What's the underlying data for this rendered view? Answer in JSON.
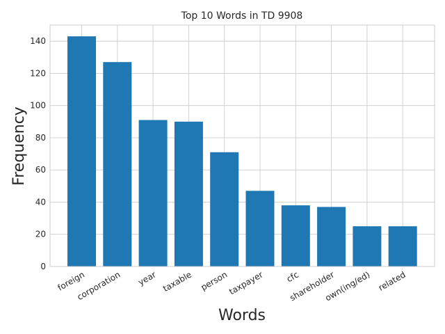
{
  "chart_data": {
    "type": "bar",
    "title": "Top 10 Words in TD 9908",
    "xlabel": "Words",
    "ylabel": "Frequency",
    "categories": [
      "foreign",
      "corporation",
      "year",
      "taxable",
      "person",
      "taxpayer",
      "cfc",
      "shareholder",
      "own(ing/ed)",
      "related"
    ],
    "values": [
      143,
      127,
      91,
      90,
      71,
      47,
      38,
      37,
      25,
      25
    ],
    "ylim": [
      0,
      150
    ],
    "yticks": [
      0,
      20,
      40,
      60,
      80,
      100,
      120,
      140
    ],
    "grid": true,
    "bar_color": "#1f77b4"
  }
}
